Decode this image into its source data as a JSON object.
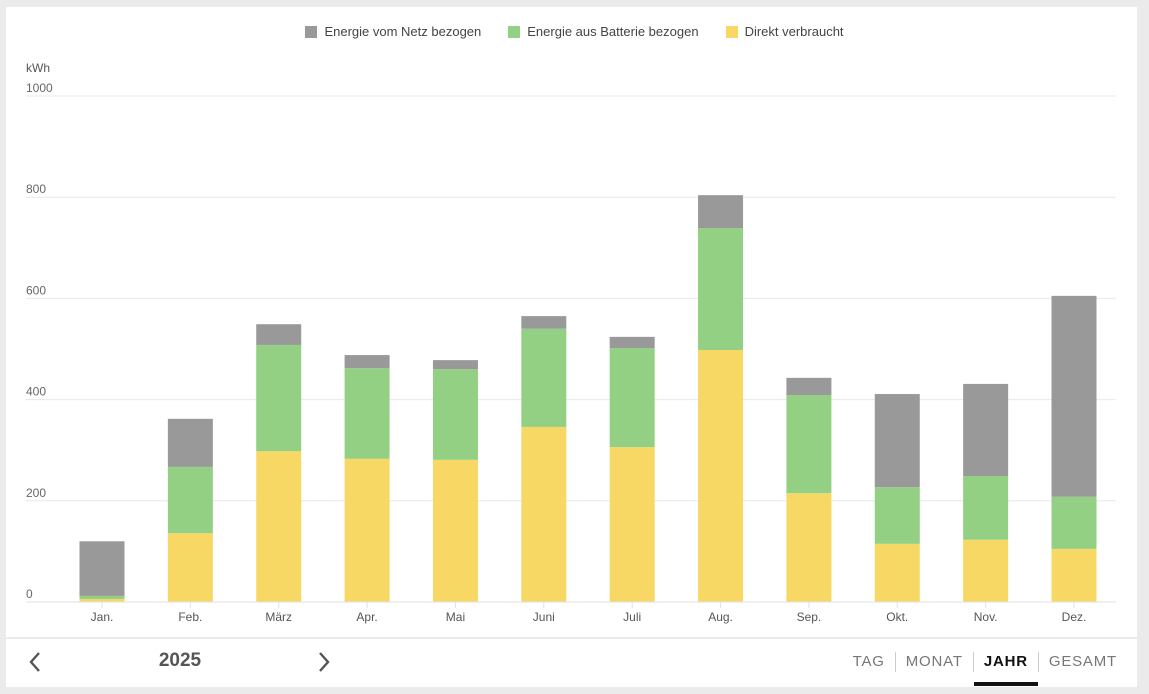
{
  "chart_data": {
    "type": "bar",
    "stacked": true,
    "title": "",
    "xlabel": "",
    "ylabel": "kWh",
    "ylim": [
      0,
      1000
    ],
    "yticks": [
      0,
      200,
      400,
      600,
      800,
      1000
    ],
    "ytick_labels": [
      "0",
      "200",
      "400",
      "600",
      "800",
      "1000"
    ],
    "grid": true,
    "legend_position": "top-center",
    "categories": [
      "Jan.",
      "Feb.",
      "März",
      "Apr.",
      "Mai",
      "Juni",
      "Juli",
      "Aug.",
      "Sep.",
      "Okt.",
      "Nov.",
      "Dez."
    ],
    "series": [
      {
        "name": "Direkt verbraucht",
        "color": "#f8d865",
        "values": [
          6,
          136,
          298,
          283,
          281,
          346,
          306,
          498,
          215,
          115,
          123,
          105
        ]
      },
      {
        "name": "Energie aus Batterie bezogen",
        "color": "#93d084",
        "values": [
          6,
          131,
          210,
          179,
          179,
          194,
          196,
          241,
          194,
          112,
          126,
          103
        ]
      },
      {
        "name": "Energie vom Netz bezogen",
        "color": "#999999",
        "values": [
          108,
          95,
          41,
          26,
          18,
          25,
          22,
          65,
          34,
          184,
          182,
          397
        ]
      }
    ],
    "legend_order": [
      "Energie vom Netz bezogen",
      "Energie aus Batterie bezogen",
      "Direkt verbraucht"
    ]
  },
  "footer": {
    "year": "2025",
    "prev_icon": "chevron-left-icon",
    "next_icon": "chevron-right-icon",
    "tabs": [
      {
        "label": "TAG",
        "active": false
      },
      {
        "label": "MONAT",
        "active": false
      },
      {
        "label": "JAHR",
        "active": true
      },
      {
        "label": "GESAMT",
        "active": false
      }
    ]
  }
}
